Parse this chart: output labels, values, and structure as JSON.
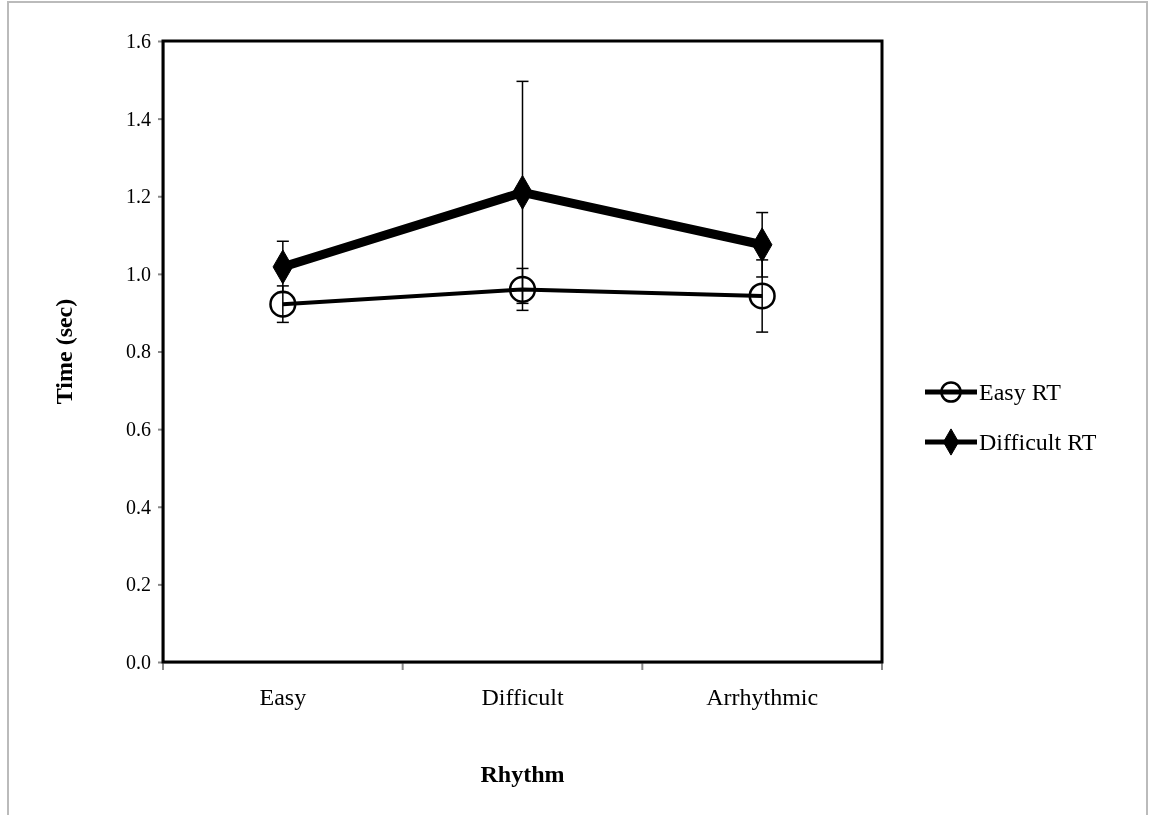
{
  "chart_data": {
    "type": "line",
    "xlabel": "Rhythm",
    "ylabel": "Time (sec)",
    "categories": [
      "Easy",
      "Difficult",
      "Arrhythmic"
    ],
    "ylim": [
      0,
      1.6
    ],
    "yticks": [
      {
        "value": 0,
        "label": "0.0"
      },
      0.2,
      0.4,
      0.6,
      0.8,
      {
        "value": 1,
        "label": "1.0"
      },
      1.2,
      1.4,
      1.6
    ],
    "grid": false,
    "legend": "right",
    "series": [
      {
        "name": "Easy RT",
        "color": "#000000",
        "marker": "circle",
        "values": [
          0.922,
          0.96,
          0.943
        ],
        "errors": [
          0.047,
          0.054,
          0.093
        ]
      },
      {
        "name": "Difficult RT",
        "color": "#000000",
        "marker": "diamond",
        "values": [
          1.018,
          1.21,
          1.075
        ],
        "errors": [
          0.066,
          0.286,
          0.083
        ]
      }
    ]
  }
}
